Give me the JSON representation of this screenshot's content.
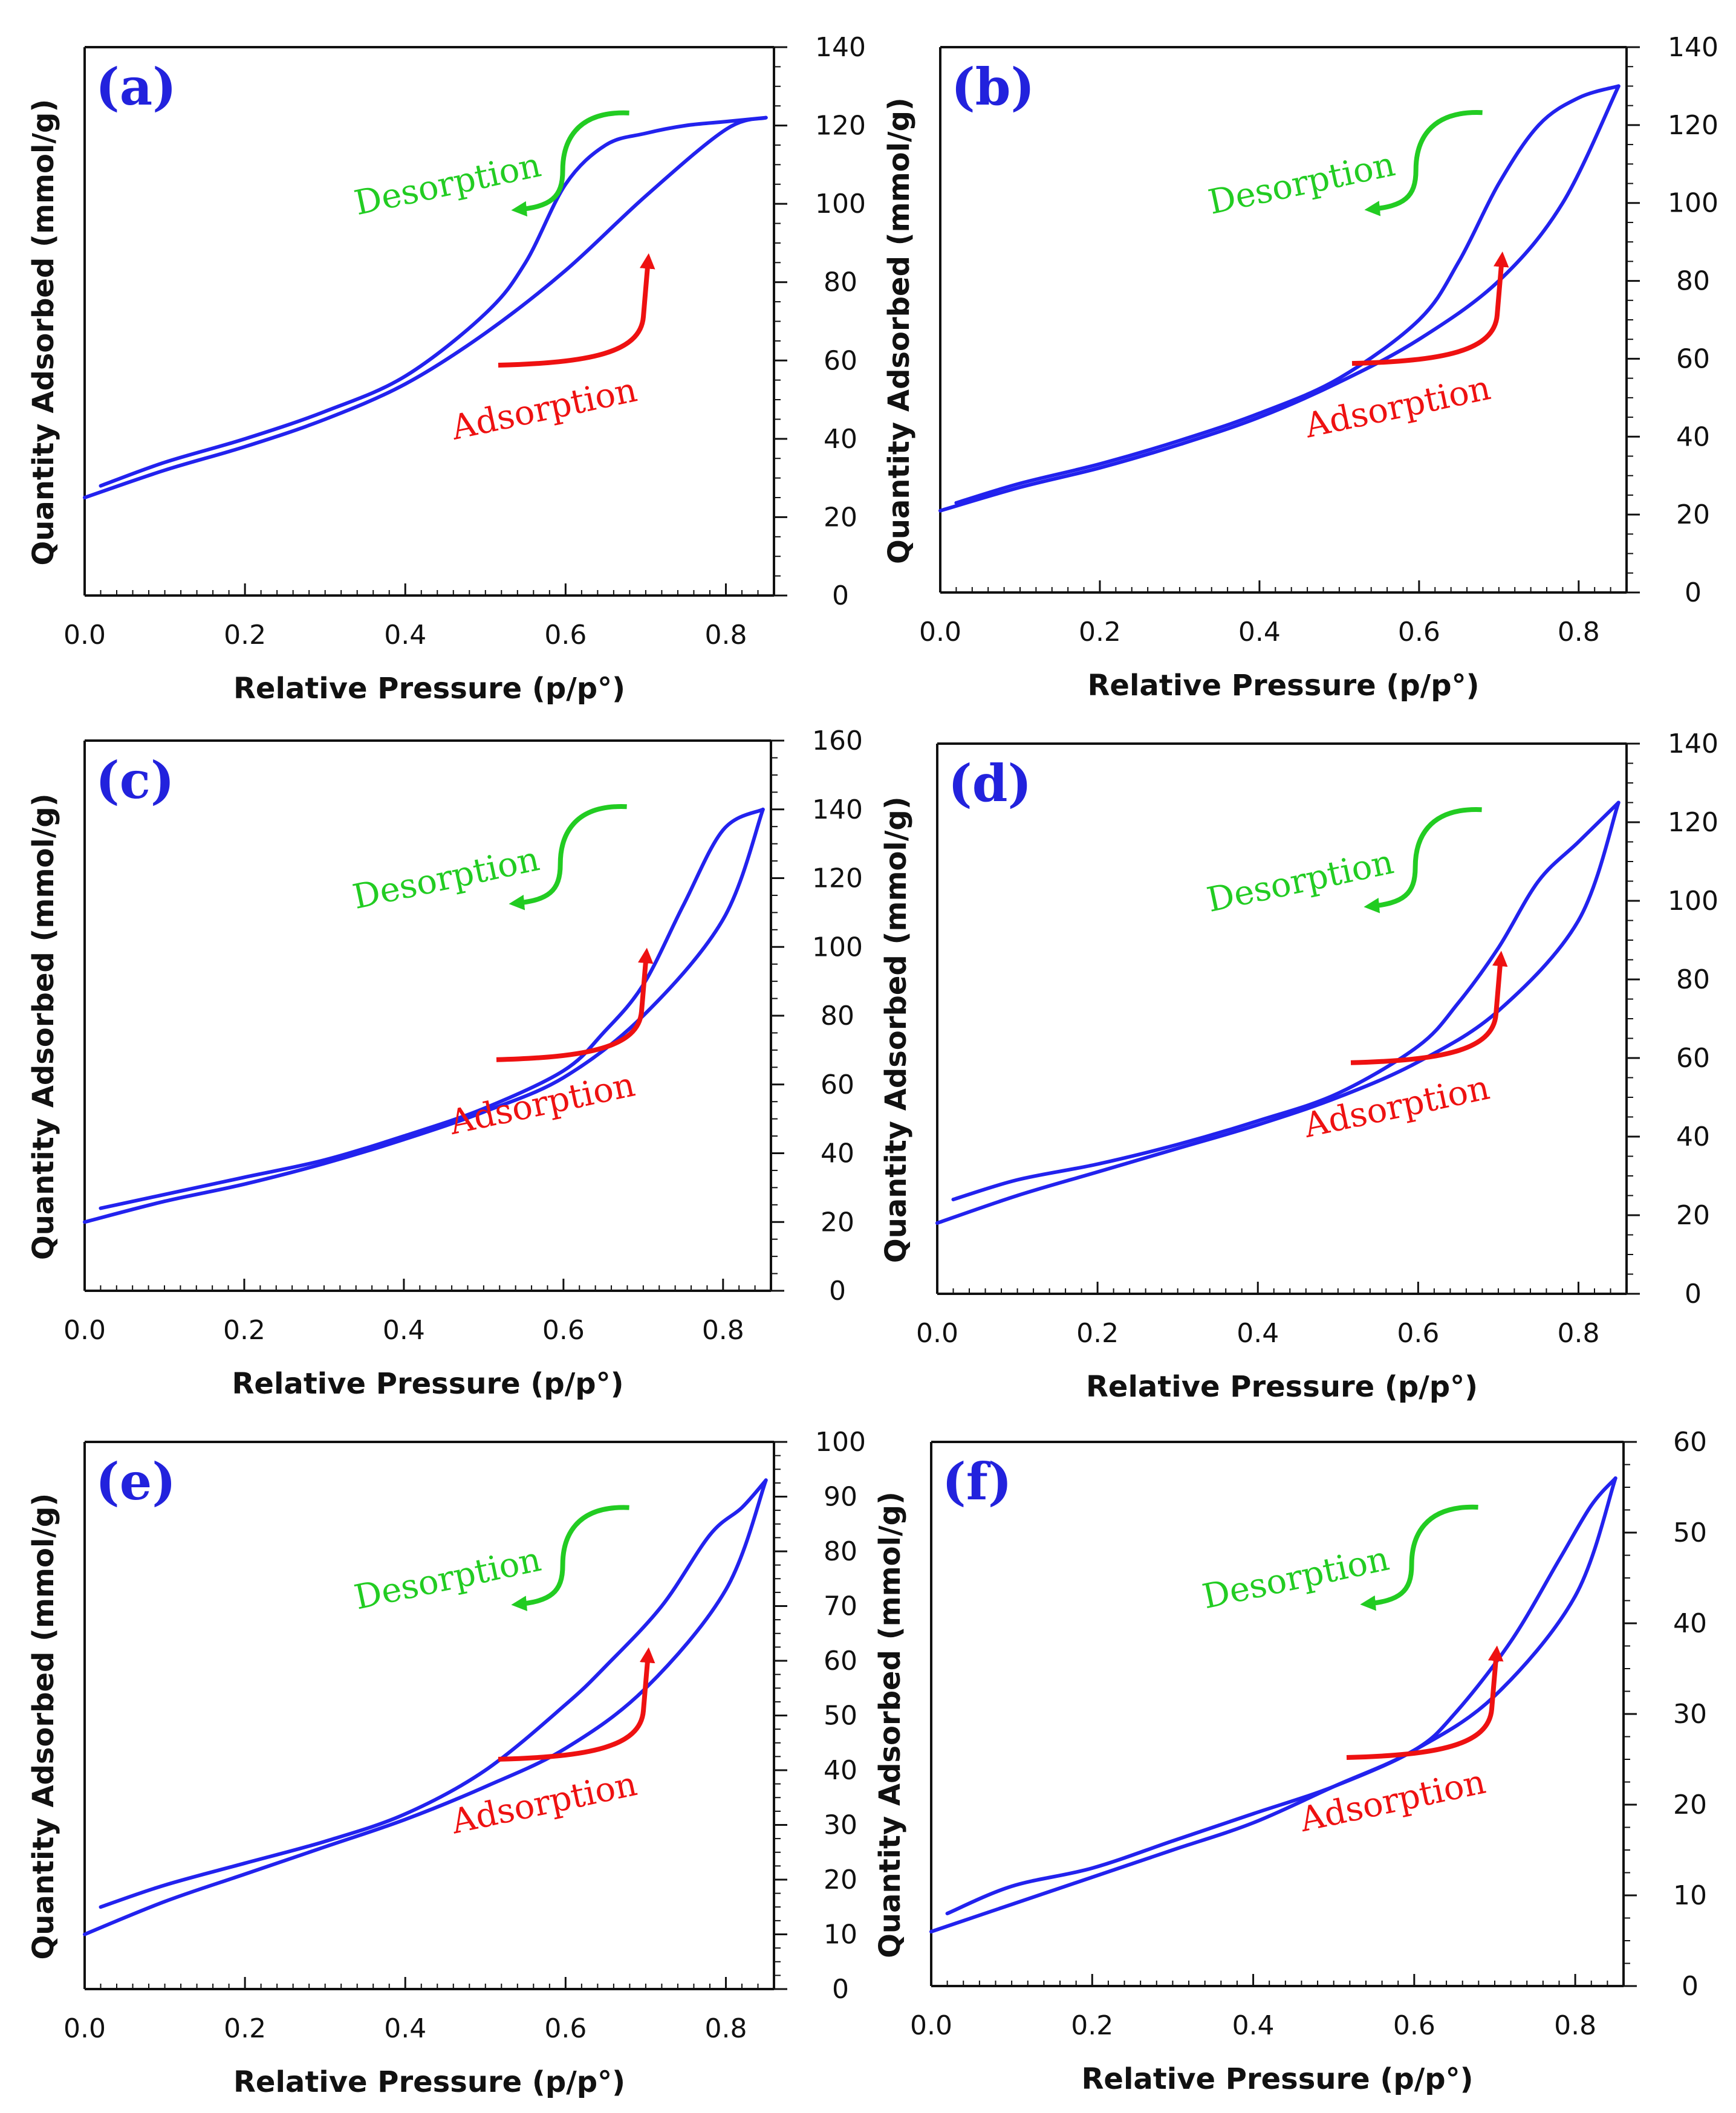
{
  "colors": {
    "curve": "#2222ee",
    "panel_label": "#2222dd",
    "desorption": "#22cc22",
    "adsorption": "#ee1111",
    "axis": "#111111"
  },
  "chart_data": [
    {
      "type": "line",
      "panel": "(a)",
      "xlabel": "Relative Pressure (p/p°)",
      "ylabel": "Quantity Adsorbed (mmol/g)",
      "xlim": [
        0,
        0.86
      ],
      "ylim": [
        0,
        140
      ],
      "xticks": [
        "0.0",
        "0.2",
        "0.4",
        "0.6",
        "0.8"
      ],
      "yticks": [
        "0",
        "20",
        "40",
        "60",
        "80",
        "100",
        "120",
        "140"
      ],
      "yaxis_side": "right",
      "annotations": {
        "desorption": "Desorption",
        "adsorption": "Adsorption"
      },
      "series": [
        {
          "name": "Adsorption",
          "x": [
            0.0,
            0.1,
            0.2,
            0.3,
            0.4,
            0.5,
            0.6,
            0.7,
            0.8,
            0.85
          ],
          "y": [
            25,
            32,
            38,
            45,
            54,
            67,
            83,
            102,
            119,
            122
          ]
        },
        {
          "name": "Desorption",
          "x": [
            0.85,
            0.8,
            0.75,
            0.7,
            0.65,
            0.6,
            0.55,
            0.5,
            0.4,
            0.3,
            0.2,
            0.1,
            0.02
          ],
          "y": [
            122,
            121,
            120,
            118,
            115,
            105,
            85,
            72,
            56,
            47,
            40,
            34,
            28
          ]
        }
      ]
    },
    {
      "type": "line",
      "panel": "(b)",
      "xlabel": "Relative Pressure (p/p°)",
      "ylabel": "Quantity Adsorbed (mmol/g)",
      "xlim": [
        0,
        0.86
      ],
      "ylim": [
        0,
        140
      ],
      "xticks": [
        "0.0",
        "0.2",
        "0.4",
        "0.6",
        "0.8"
      ],
      "yticks": [
        "0",
        "20",
        "40",
        "60",
        "80",
        "100",
        "120",
        "140"
      ],
      "yaxis_side": "right",
      "annotations": {
        "desorption": "Desorption",
        "adsorption": "Adsorption"
      },
      "series": [
        {
          "name": "Adsorption",
          "x": [
            0.0,
            0.1,
            0.2,
            0.3,
            0.4,
            0.5,
            0.6,
            0.7,
            0.78,
            0.85
          ],
          "y": [
            21,
            27,
            32,
            38,
            45,
            54,
            65,
            80,
            100,
            130
          ]
        },
        {
          "name": "Desorption",
          "x": [
            0.85,
            0.8,
            0.75,
            0.7,
            0.65,
            0.6,
            0.5,
            0.4,
            0.3,
            0.2,
            0.1,
            0.02
          ],
          "y": [
            130,
            127,
            120,
            105,
            85,
            70,
            55,
            46,
            39,
            33,
            28,
            23
          ]
        }
      ]
    },
    {
      "type": "line",
      "panel": "(c)",
      "xlabel": "Relative Pressure (p/p°)",
      "ylabel": "Quantity Adsorbed (mmol/g)",
      "xlim": [
        0,
        0.86
      ],
      "ylim": [
        0,
        160
      ],
      "xticks": [
        "0.0",
        "0.2",
        "0.4",
        "0.6",
        "0.8"
      ],
      "yticks": [
        "0",
        "20",
        "40",
        "60",
        "80",
        "100",
        "120",
        "140",
        "160"
      ],
      "yaxis_side": "right",
      "annotations": {
        "desorption": "Desorption",
        "adsorption": "Adsorption"
      },
      "series": [
        {
          "name": "Adsorption",
          "x": [
            0.0,
            0.1,
            0.2,
            0.3,
            0.4,
            0.5,
            0.6,
            0.7,
            0.8,
            0.85
          ],
          "y": [
            20,
            26,
            31,
            37,
            44,
            52,
            62,
            80,
            108,
            140
          ]
        },
        {
          "name": "Desorption",
          "x": [
            0.85,
            0.8,
            0.75,
            0.7,
            0.65,
            0.6,
            0.5,
            0.4,
            0.3,
            0.2,
            0.1,
            0.02
          ],
          "y": [
            140,
            134,
            112,
            89,
            75,
            64,
            53,
            45,
            38,
            33,
            28,
            24
          ]
        }
      ]
    },
    {
      "type": "line",
      "panel": "(d)",
      "xlabel": "Relative Pressure (p/p°)",
      "ylabel": "Quantity Adsorbed (mmol/g)",
      "xlim": [
        0,
        0.86
      ],
      "ylim": [
        0,
        140
      ],
      "xticks": [
        "0.0",
        "0.2",
        "0.4",
        "0.6",
        "0.8"
      ],
      "yticks": [
        "0",
        "20",
        "40",
        "60",
        "80",
        "100",
        "120",
        "140"
      ],
      "yaxis_side": "right",
      "annotations": {
        "desorption": "Desorption",
        "adsorption": "Adsorption"
      },
      "series": [
        {
          "name": "Adsorption",
          "x": [
            0.0,
            0.1,
            0.2,
            0.3,
            0.4,
            0.5,
            0.6,
            0.7,
            0.8,
            0.85
          ],
          "y": [
            18,
            25,
            31,
            37,
            43,
            50,
            59,
            72,
            95,
            125
          ]
        },
        {
          "name": "Desorption",
          "x": [
            0.85,
            0.8,
            0.75,
            0.7,
            0.65,
            0.6,
            0.5,
            0.4,
            0.3,
            0.2,
            0.1,
            0.02
          ],
          "y": [
            125,
            115,
            105,
            88,
            74,
            63,
            51,
            44,
            38,
            33,
            29,
            24
          ]
        }
      ]
    },
    {
      "type": "line",
      "panel": "(e)",
      "xlabel": "Relative Pressure (p/p°)",
      "ylabel": "Quantity Adsorbed (mmol/g)",
      "xlim": [
        0,
        0.86
      ],
      "ylim": [
        0,
        100
      ],
      "xticks": [
        "0.0",
        "0.2",
        "0.4",
        "0.6",
        "0.8"
      ],
      "yticks": [
        "0",
        "10",
        "20",
        "30",
        "40",
        "50",
        "60",
        "70",
        "80",
        "90",
        "100"
      ],
      "yaxis_side": "right",
      "annotations": {
        "desorption": "Desorption",
        "adsorption": "Adsorption"
      },
      "series": [
        {
          "name": "Adsorption",
          "x": [
            0.0,
            0.1,
            0.2,
            0.3,
            0.4,
            0.5,
            0.6,
            0.7,
            0.8,
            0.85
          ],
          "y": [
            10,
            16,
            21,
            26,
            31,
            37,
            44,
            55,
            73,
            93
          ]
        },
        {
          "name": "Desorption",
          "x": [
            0.85,
            0.82,
            0.78,
            0.72,
            0.65,
            0.6,
            0.5,
            0.4,
            0.3,
            0.2,
            0.1,
            0.02
          ],
          "y": [
            93,
            88,
            83,
            70,
            59,
            52,
            40,
            32,
            27,
            23,
            19,
            15
          ]
        }
      ]
    },
    {
      "type": "line",
      "panel": "(f)",
      "xlabel": "Relative Pressure (p/p°)",
      "ylabel": "Quantity Adsorbed (mmol/g)",
      "xlim": [
        0,
        0.86
      ],
      "ylim": [
        0,
        60
      ],
      "xticks": [
        "0.0",
        "0.2",
        "0.4",
        "0.6",
        "0.8"
      ],
      "yticks": [
        "0",
        "10",
        "20",
        "30",
        "40",
        "50",
        "60"
      ],
      "yaxis_side": "right",
      "annotations": {
        "desorption": "Desorption",
        "adsorption": "Adsorption"
      },
      "series": [
        {
          "name": "Adsorption",
          "x": [
            0.0,
            0.1,
            0.2,
            0.3,
            0.4,
            0.5,
            0.6,
            0.7,
            0.8,
            0.85
          ],
          "y": [
            6,
            9,
            12,
            15,
            18,
            22,
            26,
            32,
            43,
            56
          ]
        },
        {
          "name": "Desorption",
          "x": [
            0.85,
            0.82,
            0.78,
            0.72,
            0.65,
            0.6,
            0.5,
            0.4,
            0.3,
            0.2,
            0.1,
            0.02
          ],
          "y": [
            56,
            53,
            47,
            38,
            30,
            26,
            22,
            19,
            16,
            13,
            11,
            8
          ]
        }
      ]
    }
  ]
}
